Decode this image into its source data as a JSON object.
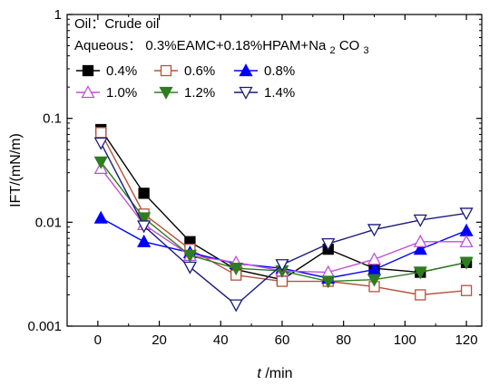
{
  "chart_data": {
    "type": "line",
    "title": "",
    "xlabel": {
      "italic": "t",
      "rest": " /min"
    },
    "ylabel": "IFT/(mN/m)",
    "xlim": [
      -10,
      125
    ],
    "ylim": [
      0.001,
      1
    ],
    "yscale": "log",
    "xticks": [
      0,
      20,
      40,
      60,
      80,
      100,
      120
    ],
    "yticks": [
      {
        "value": 0.001,
        "label": "0.001"
      },
      {
        "value": 0.01,
        "label": "0.01"
      },
      {
        "value": 0.1,
        "label": "0.1"
      },
      {
        "value": 1,
        "label": "1"
      }
    ],
    "annotations": {
      "oil": "Oil：Crude oil",
      "aqueous": {
        "prefix": "Aqueous：",
        "formula": "0.3%EAMC+0.18%HPAM+Na",
        "sub1": "2",
        "mid": "CO",
        "sub2": "3"
      }
    },
    "legend_position": "top-left",
    "series": [
      {
        "name": "0.4%",
        "color": "#000000",
        "marker": "square-filled",
        "x": [
          1,
          15,
          30,
          45,
          60,
          75,
          90,
          105,
          120
        ],
        "y": [
          0.078,
          0.019,
          0.0065,
          0.0035,
          0.0028,
          0.0055,
          0.0036,
          0.0033,
          0.0041
        ]
      },
      {
        "name": "0.6%",
        "color": "#b5523b",
        "marker": "square-open",
        "x": [
          1,
          15,
          30,
          45,
          60,
          75,
          90,
          105,
          120
        ],
        "y": [
          0.073,
          0.012,
          0.0055,
          0.0031,
          0.0027,
          0.0027,
          0.0024,
          0.002,
          0.0022
        ]
      },
      {
        "name": "0.8%",
        "color": "#0000ff",
        "marker": "triangle-up-filled",
        "x": [
          1,
          15,
          30,
          45,
          60,
          75,
          90,
          105,
          120
        ],
        "y": [
          0.011,
          0.0065,
          0.0051,
          0.004,
          0.0036,
          0.0029,
          0.0035,
          0.0055,
          0.0083
        ]
      },
      {
        "name": "1.0%",
        "color": "#c14fd9",
        "marker": "triangle-up-open",
        "x": [
          1,
          15,
          30,
          45,
          60,
          75,
          90,
          105,
          120
        ],
        "y": [
          0.033,
          0.0095,
          0.0048,
          0.0041,
          0.0034,
          0.0033,
          0.0044,
          0.0065,
          0.0065
        ]
      },
      {
        "name": "1.2%",
        "color": "#2e7d1f",
        "marker": "triangle-down-filled",
        "x": [
          1,
          15,
          30,
          45,
          60,
          75,
          90,
          105,
          120
        ],
        "y": [
          0.038,
          0.011,
          0.0048,
          0.0036,
          0.0034,
          0.0027,
          0.0028,
          0.0033,
          0.0041
        ]
      },
      {
        "name": "1.4%",
        "color": "#1a1a7a",
        "marker": "triangle-down-open",
        "x": [
          1,
          15,
          30,
          45,
          60,
          75,
          90,
          105,
          120
        ],
        "y": [
          0.058,
          0.0092,
          0.0037,
          0.0016,
          0.0039,
          0.0062,
          0.0085,
          0.0105,
          0.0122
        ]
      }
    ]
  }
}
